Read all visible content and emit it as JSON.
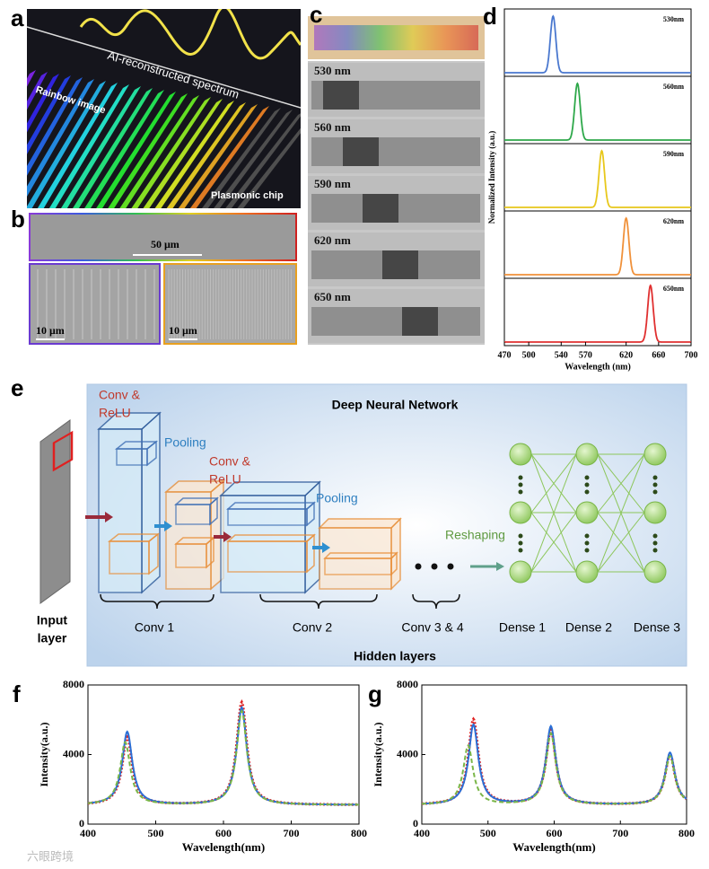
{
  "panels": [
    "a",
    "b",
    "c",
    "d",
    "e",
    "f",
    "g"
  ],
  "panel_a": {
    "title": "AI-reconstructed spectrum",
    "left": "Rainbow image",
    "right": "Plasmonic chip"
  },
  "panel_b": {
    "scale_top": "50 μm",
    "scale_left": "10 μm",
    "scale_right": "10 μm"
  },
  "panel_c": {
    "rows": [
      "530 nm",
      "560 nm",
      "590 nm",
      "620 nm",
      "650 nm"
    ]
  },
  "panel_d": {
    "chart_data": {
      "type": "line",
      "xlabel": "Wavelength (nm)",
      "ylabel": "Normalized Intensity (a.u.)",
      "xlim": [
        470,
        700
      ],
      "xticks": [
        470,
        500,
        540,
        570,
        620,
        660,
        700
      ],
      "hwhm": 4,
      "series": [
        {
          "name": "530nm",
          "color": "#4a78cf",
          "peak": 530
        },
        {
          "name": "560nm",
          "color": "#2ea84a",
          "peak": 560
        },
        {
          "name": "590nm",
          "color": "#e8c81c",
          "peak": 590
        },
        {
          "name": "620nm",
          "color": "#f0913a",
          "peak": 620
        },
        {
          "name": "650nm",
          "color": "#e03030",
          "peak": 650
        }
      ]
    }
  },
  "panel_e": {
    "title": "Deep Neural Network",
    "conv_relu_1": [
      "Conv &",
      "ReLU"
    ],
    "conv_relu_2": [
      "Conv &",
      "ReLU"
    ],
    "pooling_1": "Pooling",
    "pooling_2": "Pooling",
    "reshaping": "Reshaping",
    "input": [
      "Input",
      "layer"
    ],
    "layers": [
      "Conv 1",
      "Conv 2",
      "Conv 3 & 4",
      "Dense 1",
      "Dense 2",
      "Dense 3"
    ],
    "hidden": "Hidden layers"
  },
  "panel_f": {
    "chart_data": {
      "type": "line",
      "xlabel": "Wavelength(nm)",
      "ylabel": "Intensity(a.u.)",
      "xlim": [
        400,
        800
      ],
      "ylim": [
        0,
        8000
      ],
      "xticks": [
        400,
        500,
        600,
        700,
        800
      ],
      "yticks": [
        0,
        4000,
        8000
      ],
      "baseline": 1100,
      "hwhm": 9,
      "series": [
        {
          "color": "#e02020",
          "peaks": [
            [
              458,
              5000
            ],
            [
              627,
              7000
            ]
          ]
        },
        {
          "color": "#2a6fd6",
          "peaks": [
            [
              458,
              5300
            ],
            [
              627,
              6700
            ]
          ]
        },
        {
          "color": "#7ab648",
          "peaks": [
            [
              455,
              4700
            ],
            [
              627,
              6500
            ]
          ]
        }
      ]
    }
  },
  "panel_g": {
    "chart_data": {
      "type": "line",
      "xlabel": "Wavelength(nm)",
      "ylabel": "Intensity(a.u.)",
      "xlim": [
        400,
        800
      ],
      "ylim": [
        0,
        8000
      ],
      "xticks": [
        400,
        500,
        600,
        700,
        800
      ],
      "yticks": [
        0,
        4000,
        8000
      ],
      "baseline": 1100,
      "hwhm": 9,
      "series": [
        {
          "color": "#e02020",
          "peaks": [
            [
              478,
              6000
            ],
            [
              595,
              5400
            ],
            [
              775,
              4000
            ]
          ]
        },
        {
          "color": "#2a6fd6",
          "peaks": [
            [
              478,
              5700
            ],
            [
              595,
              5600
            ],
            [
              775,
              4100
            ]
          ]
        },
        {
          "color": "#7ab648",
          "peaks": [
            [
              470,
              4500
            ],
            [
              595,
              5200
            ],
            [
              775,
              3900
            ]
          ]
        }
      ]
    }
  },
  "watermark": "六眼跨境"
}
